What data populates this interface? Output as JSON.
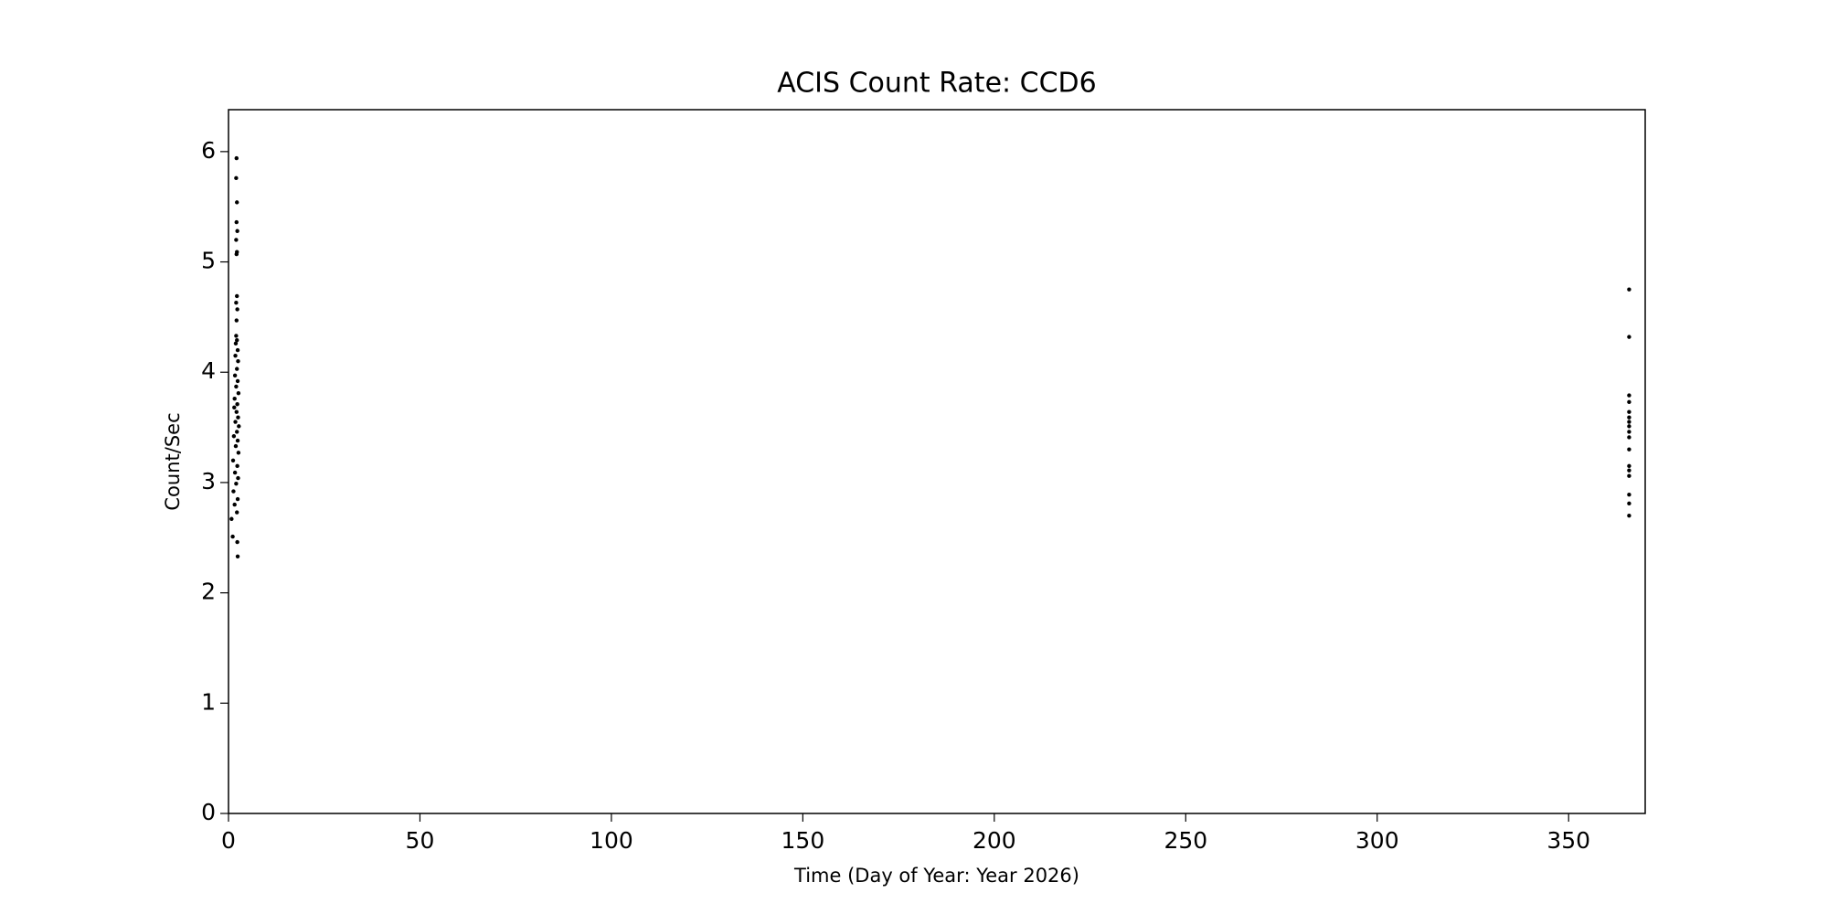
{
  "chart_data": {
    "type": "scatter",
    "title": "ACIS Count Rate: CCD6",
    "x_label": "Time (Day of Year: Year 2026)",
    "y_label": "Count/Sec",
    "color": "#000000",
    "x": [
      2.1,
      2.0,
      2.2,
      2.1,
      2.3,
      2.0,
      2.2,
      2.1,
      2.2,
      2.0,
      2.3,
      2.1,
      2.0,
      2.2,
      1.9,
      2.4,
      1.8,
      2.5,
      2.2,
      1.7,
      2.4,
      2.0,
      2.6,
      1.6,
      2.3,
      1.5,
      2.1,
      2.5,
      1.8,
      2.7,
      2.2,
      1.4,
      2.4,
      1.9,
      2.6,
      1.2,
      2.3,
      1.7,
      2.5,
      2.0,
      1.3,
      2.4,
      1.6,
      2.2,
      0.8,
      1.1,
      2.3,
      2.4,
      365.8,
      365.8,
      365.8,
      365.8,
      365.8,
      365.8,
      365.8,
      365.8,
      365.8,
      365.8,
      365.8,
      365.8,
      365.8,
      365.8,
      365.8,
      365.8,
      365.8
    ],
    "values": [
      5.94,
      5.76,
      5.54,
      5.36,
      5.28,
      5.2,
      5.09,
      5.07,
      4.69,
      4.63,
      4.57,
      4.47,
      4.33,
      4.29,
      4.26,
      4.2,
      4.15,
      4.1,
      4.03,
      3.97,
      3.92,
      3.87,
      3.81,
      3.76,
      3.71,
      3.68,
      3.64,
      3.59,
      3.55,
      3.51,
      3.46,
      3.42,
      3.38,
      3.33,
      3.27,
      3.2,
      3.15,
      3.09,
      3.04,
      2.99,
      2.92,
      2.85,
      2.8,
      2.73,
      2.67,
      2.51,
      2.46,
      2.33,
      4.75,
      4.32,
      3.79,
      3.73,
      3.64,
      3.59,
      3.55,
      3.51,
      3.46,
      3.41,
      3.3,
      3.15,
      3.11,
      3.06,
      2.89,
      2.81,
      2.7
    ],
    "xlim": [
      0,
      370
    ],
    "xticks": [
      0,
      50,
      100,
      150,
      200,
      250,
      300,
      350
    ],
    "ylim": [
      0,
      6.38
    ],
    "yticks": [
      0,
      1,
      2,
      3,
      4,
      5,
      6
    ]
  }
}
